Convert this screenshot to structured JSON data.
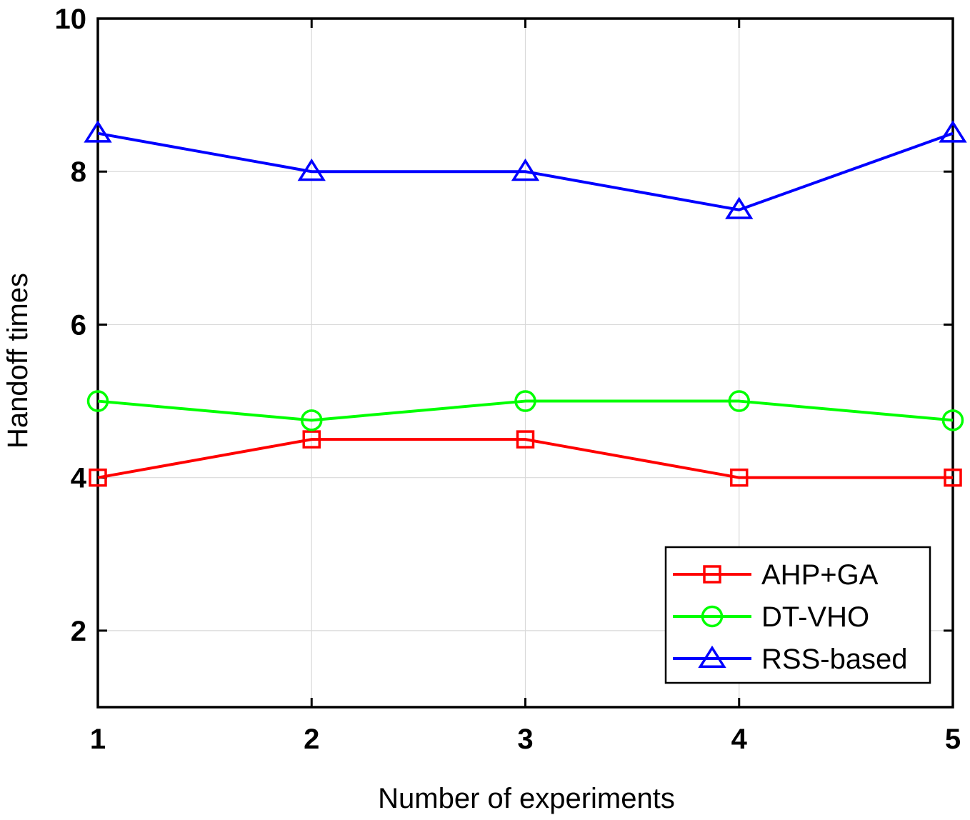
{
  "chart_data": {
    "type": "line",
    "title": "",
    "xlabel": "Number of experiments",
    "ylabel": "Handoff times",
    "x": [
      1,
      2,
      3,
      4,
      5
    ],
    "xlim": [
      1,
      5
    ],
    "ylim": [
      1,
      10
    ],
    "xticks": [
      1,
      2,
      3,
      4,
      5
    ],
    "yticks": [
      2,
      4,
      6,
      8,
      10
    ],
    "grid": true,
    "legend_position": "bottom-right",
    "series": [
      {
        "name": "AHP+GA",
        "values": [
          4,
          4.5,
          4.5,
          4,
          4
        ],
        "color": "#ff0000",
        "marker": "square"
      },
      {
        "name": "DT-VHO",
        "values": [
          5,
          4.75,
          5,
          5,
          4.75
        ],
        "color": "#00ff00",
        "marker": "circle"
      },
      {
        "name": "RSS-based",
        "values": [
          8.5,
          8,
          8,
          7.5,
          8.5
        ],
        "color": "#0000ff",
        "marker": "triangle"
      }
    ]
  }
}
